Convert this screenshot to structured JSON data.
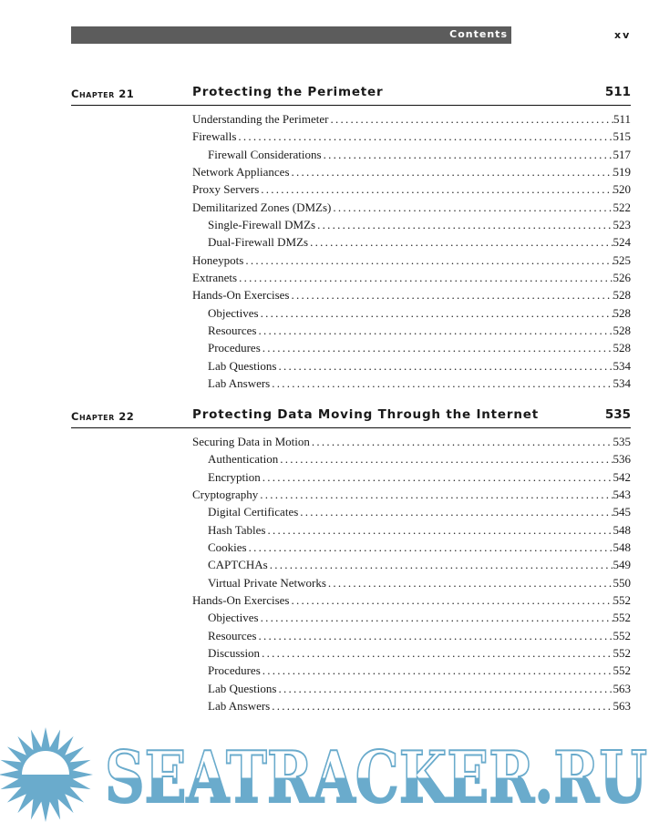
{
  "header": {
    "section": "Contents",
    "page_number": "xv"
  },
  "chapters": [
    {
      "label": "Chapter 21",
      "title": "Protecting the Perimeter",
      "page": "511",
      "entries": [
        {
          "level": 1,
          "title": "Understanding the Perimeter",
          "page": "511"
        },
        {
          "level": 1,
          "title": "Firewalls",
          "page": "515"
        },
        {
          "level": 2,
          "title": "Firewall Considerations",
          "page": "517"
        },
        {
          "level": 1,
          "title": "Network Appliances",
          "page": "519"
        },
        {
          "level": 1,
          "title": "Proxy Servers",
          "page": "520"
        },
        {
          "level": 1,
          "title": "Demilitarized Zones (DMZs)",
          "page": "522"
        },
        {
          "level": 2,
          "title": "Single-Firewall DMZs",
          "page": "523"
        },
        {
          "level": 2,
          "title": "Dual-Firewall DMZs",
          "page": "524"
        },
        {
          "level": 1,
          "title": "Honeypots",
          "page": "525"
        },
        {
          "level": 1,
          "title": "Extranets",
          "page": "526"
        },
        {
          "level": 1,
          "title": "Hands-On Exercises",
          "page": "528"
        },
        {
          "level": 2,
          "title": "Objectives",
          "page": "528"
        },
        {
          "level": 2,
          "title": "Resources",
          "page": "528"
        },
        {
          "level": 2,
          "title": "Procedures",
          "page": "528"
        },
        {
          "level": 2,
          "title": "Lab Questions",
          "page": "534"
        },
        {
          "level": 2,
          "title": "Lab Answers",
          "page": "534"
        }
      ]
    },
    {
      "label": "Chapter 22",
      "title": "Protecting Data Moving Through the Internet",
      "page": "535",
      "entries": [
        {
          "level": 1,
          "title": "Securing Data in Motion",
          "page": "535"
        },
        {
          "level": 2,
          "title": "Authentication",
          "page": "536"
        },
        {
          "level": 2,
          "title": "Encryption",
          "page": "542"
        },
        {
          "level": 1,
          "title": "Cryptography",
          "page": "543"
        },
        {
          "level": 2,
          "title": "Digital Certificates",
          "page": "545"
        },
        {
          "level": 2,
          "title": "Hash Tables",
          "page": "548"
        },
        {
          "level": 2,
          "title": "Cookies",
          "page": "548"
        },
        {
          "level": 2,
          "title": "CAPTCHAs",
          "page": "549"
        },
        {
          "level": 2,
          "title": "Virtual Private Networks",
          "page": "550"
        },
        {
          "level": 1,
          "title": "Hands-On Exercises",
          "page": "552"
        },
        {
          "level": 2,
          "title": "Objectives",
          "page": "552"
        },
        {
          "level": 2,
          "title": "Resources",
          "page": "552"
        },
        {
          "level": 2,
          "title": "Discussion",
          "page": "552"
        },
        {
          "level": 2,
          "title": "Procedures",
          "page": "552"
        },
        {
          "level": 2,
          "title": "Lab Questions",
          "page": "563"
        },
        {
          "level": 2,
          "title": "Lab Answers",
          "page": "563"
        }
      ]
    }
  ],
  "watermark": {
    "text": "SEATRACKER.RU",
    "color": "#6aabcc"
  }
}
